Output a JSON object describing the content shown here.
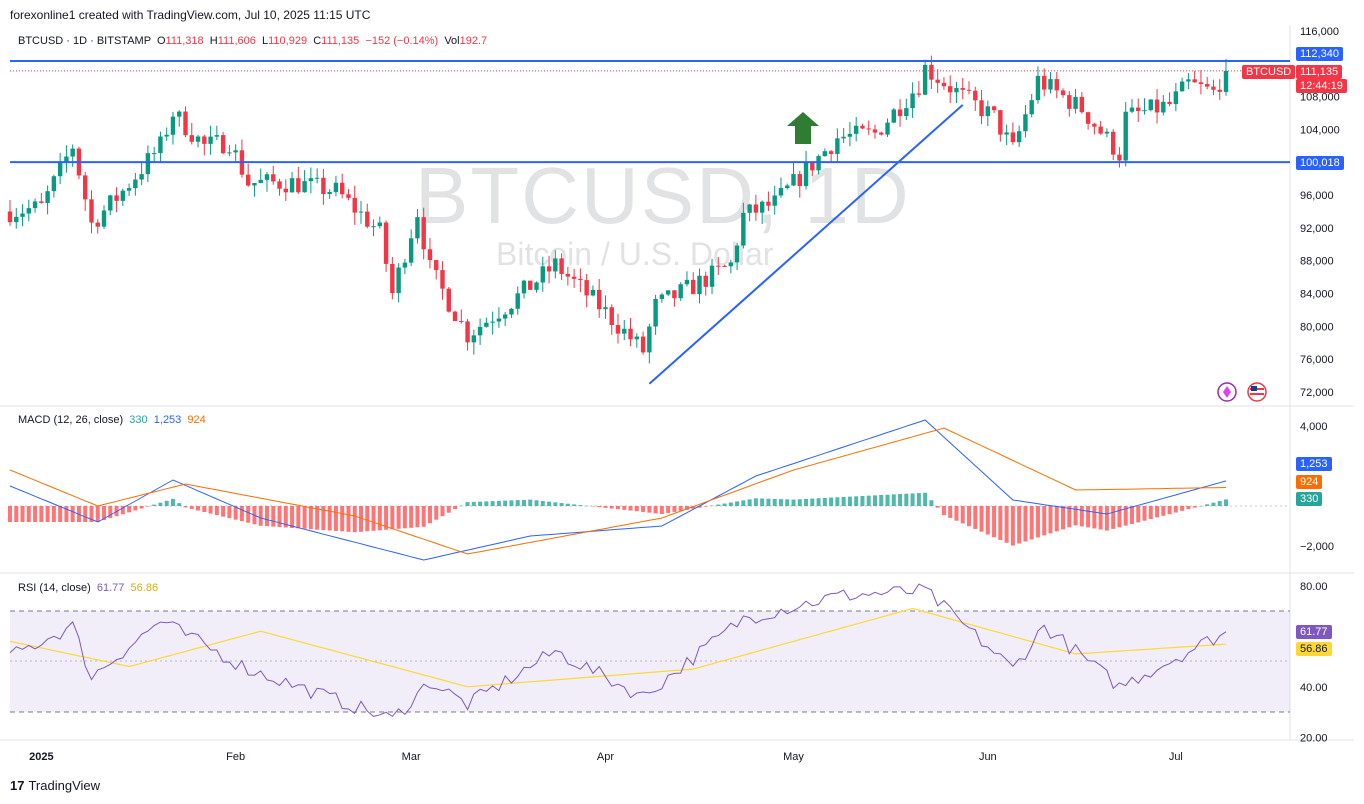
{
  "header": {
    "credit": "forexonline1 created with TradingView.com, Jul 10, 2025 11:15 UTC"
  },
  "symbol_info": {
    "name": "BTCUSD · 1D · BITSTAMP",
    "open_label": "O",
    "open": "111,318",
    "high_label": "H",
    "high": "111,606",
    "low_label": "L",
    "low": "110,929",
    "close_label": "C",
    "close": "111,135",
    "change": "−152 (−0.14%)",
    "vol_label": "Vol",
    "vol": "192.7"
  },
  "watermark": {
    "title": "BTCUSD, 1D",
    "subtitle": "Bitcoin / U.S. Dollar"
  },
  "price_tags": {
    "symbol_tag": "BTCUSD",
    "last_price": "111,135",
    "countdown": "12:44:19",
    "resistance": "112,340",
    "support": "100,018"
  },
  "macd_legend": {
    "label": "MACD (12, 26, close)",
    "hist": "330",
    "macd": "1,253",
    "signal": "924"
  },
  "rsi_legend": {
    "label": "RSI (14, close)",
    "rsi": "61.77",
    "ma": "56.86"
  },
  "footer": {
    "brand": "TradingView"
  },
  "colors": {
    "up": "#089981",
    "down": "#f23645",
    "line_blue": "#2962ff",
    "macd_line": "#2962ff",
    "signal_line": "#ff6d00",
    "rsi_line": "#7e57c2",
    "rsi_ma": "#fdd835",
    "arrow": "#2e7d32"
  },
  "chart_data": [
    {
      "type": "candlestick",
      "title": "BTCUSD · 1D · BITSTAMP",
      "x_ticks": [
        "2025",
        "Feb",
        "Mar",
        "Apr",
        "May",
        "Jun",
        "Jul"
      ],
      "y_ticks": [
        "116,000",
        "108,000",
        "104,000",
        "96,000",
        "92,000",
        "88,000",
        "84,000",
        "80,000",
        "76,000",
        "72,000"
      ],
      "ylim": [
        70000,
        117000
      ],
      "horizontal_lines": [
        112340,
        100018
      ],
      "trendline": {
        "from": {
          "date": "2025-04-08",
          "price": 73000
        },
        "to": {
          "date": "2025-05-28",
          "price": 107000
        }
      },
      "last_close": 111135,
      "approx_closes": [
        {
          "date": "2024-12-27",
          "close": 94000
        },
        {
          "date": "2025-01-01",
          "close": 94500
        },
        {
          "date": "2025-01-06",
          "close": 102000
        },
        {
          "date": "2025-01-09",
          "close": 92500
        },
        {
          "date": "2025-01-14",
          "close": 96500
        },
        {
          "date": "2025-01-20",
          "close": 102000
        },
        {
          "date": "2025-01-22",
          "close": 106000
        },
        {
          "date": "2025-01-27",
          "close": 102000
        },
        {
          "date": "2025-01-31",
          "close": 102500
        },
        {
          "date": "2025-02-03",
          "close": 97500
        },
        {
          "date": "2025-02-10",
          "close": 97500
        },
        {
          "date": "2025-02-17",
          "close": 96500
        },
        {
          "date": "2025-02-24",
          "close": 91500
        },
        {
          "date": "2025-02-26",
          "close": 84000
        },
        {
          "date": "2025-03-02",
          "close": 94000
        },
        {
          "date": "2025-03-04",
          "close": 87000
        },
        {
          "date": "2025-03-10",
          "close": 79000
        },
        {
          "date": "2025-03-17",
          "close": 83000
        },
        {
          "date": "2025-03-24",
          "close": 87500
        },
        {
          "date": "2025-03-31",
          "close": 82500
        },
        {
          "date": "2025-04-07",
          "close": 77000
        },
        {
          "date": "2025-04-09",
          "close": 82500
        },
        {
          "date": "2025-04-14",
          "close": 84500
        },
        {
          "date": "2025-04-21",
          "close": 87500
        },
        {
          "date": "2025-04-23",
          "close": 93500
        },
        {
          "date": "2025-04-28",
          "close": 95000
        },
        {
          "date": "2025-05-08",
          "close": 103000
        },
        {
          "date": "2025-05-14",
          "close": 103500
        },
        {
          "date": "2025-05-21",
          "close": 109500
        },
        {
          "date": "2025-05-22",
          "close": 111500
        },
        {
          "date": "2025-05-28",
          "close": 108000
        },
        {
          "date": "2025-06-02",
          "close": 105500
        },
        {
          "date": "2025-06-05",
          "close": 101500
        },
        {
          "date": "2025-06-09",
          "close": 110000
        },
        {
          "date": "2025-06-16",
          "close": 106500
        },
        {
          "date": "2025-06-22",
          "close": 101000
        },
        {
          "date": "2025-06-23",
          "close": 105500
        },
        {
          "date": "2025-06-30",
          "close": 107000
        },
        {
          "date": "2025-07-03",
          "close": 109500
        },
        {
          "date": "2025-07-07",
          "close": 108500
        },
        {
          "date": "2025-07-09",
          "close": 111135
        }
      ]
    },
    {
      "type": "line",
      "title": "MACD (12, 26, close)",
      "y_ticks": [
        "4,000",
        "−2,000"
      ],
      "ylim": [
        -2800,
        4700
      ],
      "last": {
        "histogram": 330,
        "macd": 1253,
        "signal": 924
      },
      "series": [
        {
          "name": "MACD",
          "approx_values": [
            {
              "date": "2024-12-27",
              "value": 1000
            },
            {
              "date": "2025-01-10",
              "value": -800
            },
            {
              "date": "2025-01-22",
              "value": 1300
            },
            {
              "date": "2025-02-05",
              "value": -600
            },
            {
              "date": "2025-03-03",
              "value": -2700
            },
            {
              "date": "2025-03-20",
              "value": -1500
            },
            {
              "date": "2025-04-10",
              "value": -1000
            },
            {
              "date": "2025-04-25",
              "value": 1500
            },
            {
              "date": "2025-05-22",
              "value": 4300
            },
            {
              "date": "2025-06-05",
              "value": 300
            },
            {
              "date": "2025-06-20",
              "value": -400
            },
            {
              "date": "2025-07-09",
              "value": 1253
            }
          ]
        },
        {
          "name": "Signal",
          "approx_values": [
            {
              "date": "2024-12-27",
              "value": 1800
            },
            {
              "date": "2025-01-10",
              "value": 0
            },
            {
              "date": "2025-01-24",
              "value": 1100
            },
            {
              "date": "2025-02-20",
              "value": -500
            },
            {
              "date": "2025-03-10",
              "value": -2400
            },
            {
              "date": "2025-04-10",
              "value": -600
            },
            {
              "date": "2025-05-01",
              "value": 1800
            },
            {
              "date": "2025-05-25",
              "value": 3900
            },
            {
              "date": "2025-06-15",
              "value": 800
            },
            {
              "date": "2025-07-09",
              "value": 924
            }
          ]
        }
      ]
    },
    {
      "type": "line",
      "title": "RSI (14, close)",
      "y_ticks": [
        "80.00",
        "40.00",
        "20.00"
      ],
      "ylim": [
        20,
        80
      ],
      "band": [
        30,
        70
      ],
      "last": {
        "rsi": 61.77,
        "ma": 56.86
      },
      "series": [
        {
          "name": "RSI",
          "approx_values": [
            {
              "date": "2024-12-27",
              "value": 52
            },
            {
              "date": "2025-01-06",
              "value": 64
            },
            {
              "date": "2025-01-09",
              "value": 44
            },
            {
              "date": "2025-01-20",
              "value": 66
            },
            {
              "date": "2025-02-03",
              "value": 47
            },
            {
              "date": "2025-02-26",
              "value": 27
            },
            {
              "date": "2025-03-04",
              "value": 42
            },
            {
              "date": "2025-03-10",
              "value": 33
            },
            {
              "date": "2025-03-24",
              "value": 54
            },
            {
              "date": "2025-04-07",
              "value": 36
            },
            {
              "date": "2025-04-23",
              "value": 67
            },
            {
              "date": "2025-05-08",
              "value": 76
            },
            {
              "date": "2025-05-22",
              "value": 78
            },
            {
              "date": "2025-06-05",
              "value": 47
            },
            {
              "date": "2025-06-10",
              "value": 64
            },
            {
              "date": "2025-06-22",
              "value": 40
            },
            {
              "date": "2025-07-09",
              "value": 61.77
            }
          ]
        },
        {
          "name": "RSI MA",
          "approx_values": [
            {
              "date": "2024-12-27",
              "value": 58
            },
            {
              "date": "2025-01-15",
              "value": 48
            },
            {
              "date": "2025-02-05",
              "value": 62
            },
            {
              "date": "2025-03-10",
              "value": 40
            },
            {
              "date": "2025-04-15",
              "value": 47
            },
            {
              "date": "2025-05-20",
              "value": 71
            },
            {
              "date": "2025-06-15",
              "value": 53
            },
            {
              "date": "2025-07-09",
              "value": 56.86
            }
          ]
        }
      ]
    }
  ]
}
